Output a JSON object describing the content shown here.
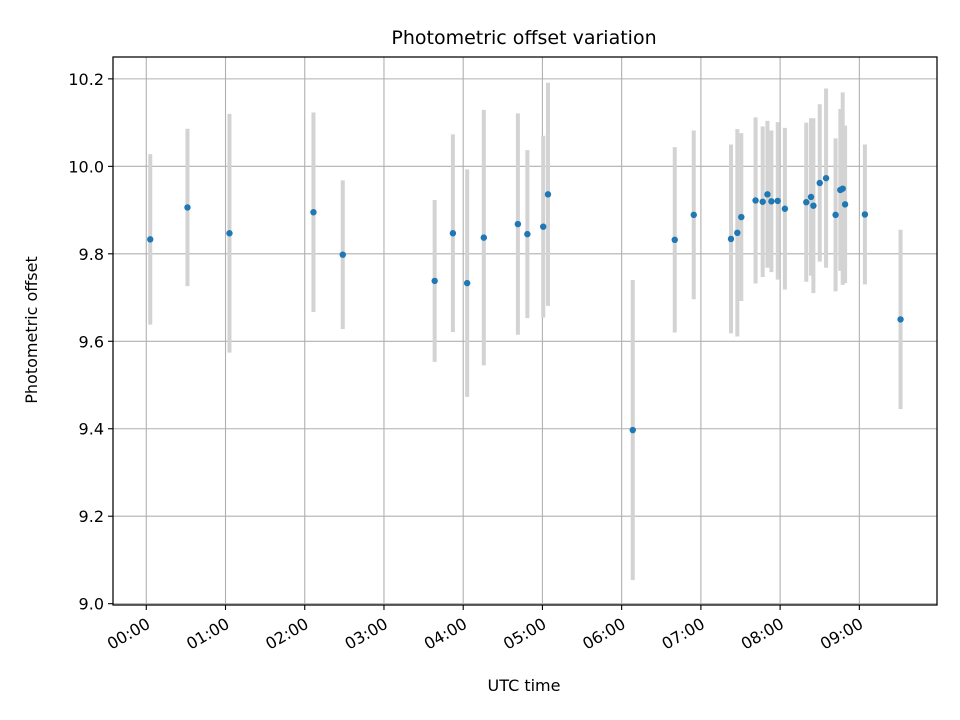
{
  "chart_data": {
    "type": "scatter",
    "title": "Photometric offset variation",
    "xlabel": "UTC time",
    "ylabel": "Photometric offset",
    "grid": true,
    "xlim": [
      -0.42,
      9.98
    ],
    "ylim": [
      8.997,
      10.25
    ],
    "x_ticks": [
      {
        "value": 0,
        "label": "00:00"
      },
      {
        "value": 1,
        "label": "01:00"
      },
      {
        "value": 2,
        "label": "02:00"
      },
      {
        "value": 3,
        "label": "03:00"
      },
      {
        "value": 4,
        "label": "04:00"
      },
      {
        "value": 5,
        "label": "05:00"
      },
      {
        "value": 6,
        "label": "06:00"
      },
      {
        "value": 7,
        "label": "07:00"
      },
      {
        "value": 8,
        "label": "08:00"
      },
      {
        "value": 9,
        "label": "09:00"
      }
    ],
    "y_ticks": [
      {
        "value": 9.0,
        "label": "9.0"
      },
      {
        "value": 9.2,
        "label": "9.2"
      },
      {
        "value": 9.4,
        "label": "9.4"
      },
      {
        "value": 9.6,
        "label": "9.6"
      },
      {
        "value": 9.8,
        "label": "9.8"
      },
      {
        "value": 10.0,
        "label": "10.0"
      },
      {
        "value": 10.2,
        "label": "10.2"
      }
    ],
    "marker_color": "#1f77b4",
    "errorbar_color": "#d3d3d3",
    "points": [
      {
        "x": 0.05,
        "y": 9.833,
        "err": 0.195
      },
      {
        "x": 0.52,
        "y": 9.906,
        "err": 0.18
      },
      {
        "x": 1.05,
        "y": 9.847,
        "err": 0.273
      },
      {
        "x": 2.11,
        "y": 9.895,
        "err": 0.228
      },
      {
        "x": 2.48,
        "y": 9.798,
        "err": 0.17
      },
      {
        "x": 3.64,
        "y": 9.738,
        "err": 0.185
      },
      {
        "x": 3.87,
        "y": 9.847,
        "err": 0.226
      },
      {
        "x": 4.05,
        "y": 9.733,
        "err": 0.26
      },
      {
        "x": 4.26,
        "y": 9.837,
        "err": 0.292
      },
      {
        "x": 4.69,
        "y": 9.868,
        "err": 0.253
      },
      {
        "x": 4.81,
        "y": 9.845,
        "err": 0.192
      },
      {
        "x": 5.01,
        "y": 9.862,
        "err": 0.208
      },
      {
        "x": 5.07,
        "y": 9.936,
        "err": 0.255
      },
      {
        "x": 6.14,
        "y": 9.397,
        "err": 0.343
      },
      {
        "x": 6.67,
        "y": 9.832,
        "err": 0.212
      },
      {
        "x": 6.91,
        "y": 9.889,
        "err": 0.193
      },
      {
        "x": 7.38,
        "y": 9.834,
        "err": 0.216
      },
      {
        "x": 7.46,
        "y": 9.848,
        "err": 0.237
      },
      {
        "x": 7.51,
        "y": 9.884,
        "err": 0.192
      },
      {
        "x": 7.69,
        "y": 9.922,
        "err": 0.19
      },
      {
        "x": 7.78,
        "y": 9.919,
        "err": 0.172
      },
      {
        "x": 7.84,
        "y": 9.936,
        "err": 0.168
      },
      {
        "x": 7.89,
        "y": 9.92,
        "err": 0.162
      },
      {
        "x": 7.97,
        "y": 9.921,
        "err": 0.18
      },
      {
        "x": 8.06,
        "y": 9.903,
        "err": 0.185
      },
      {
        "x": 8.33,
        "y": 9.918,
        "err": 0.182
      },
      {
        "x": 8.39,
        "y": 9.93,
        "err": 0.18
      },
      {
        "x": 8.42,
        "y": 9.91,
        "err": 0.2
      },
      {
        "x": 8.5,
        "y": 9.962,
        "err": 0.18
      },
      {
        "x": 8.58,
        "y": 9.973,
        "err": 0.205
      },
      {
        "x": 8.7,
        "y": 9.889,
        "err": 0.175
      },
      {
        "x": 8.76,
        "y": 9.946,
        "err": 0.185
      },
      {
        "x": 8.79,
        "y": 9.949,
        "err": 0.22
      },
      {
        "x": 8.82,
        "y": 9.913,
        "err": 0.18
      },
      {
        "x": 9.07,
        "y": 9.89,
        "err": 0.16
      },
      {
        "x": 9.52,
        "y": 9.65,
        "err": 0.205
      }
    ]
  }
}
